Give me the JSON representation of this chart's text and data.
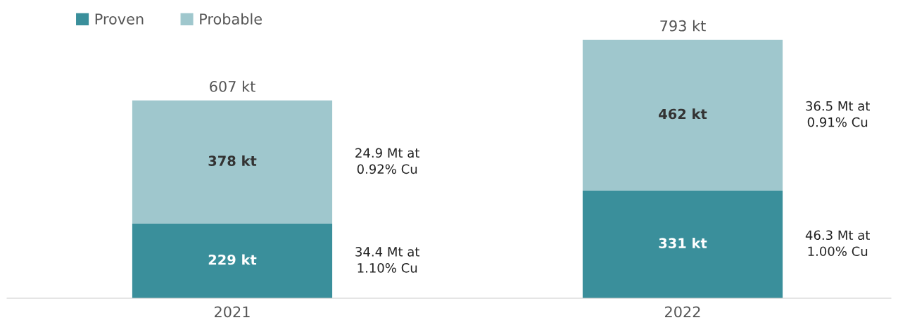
{
  "chart_data": {
    "type": "bar",
    "stacked": true,
    "categories": [
      "2021",
      "2022"
    ],
    "series": [
      {
        "name": "Proven",
        "color": "#3a8f9b",
        "values": [
          229,
          331
        ],
        "value_labels": [
          "229 kt",
          "331 kt"
        ]
      },
      {
        "name": "Probable",
        "color": "#9fc7cd",
        "values": [
          378,
          462
        ],
        "value_labels": [
          "378 kt",
          "462 kt"
        ]
      }
    ],
    "totals": [
      "607 kt",
      "793 kt"
    ],
    "annotations": [
      "34.4 Mt at\n1.10% Cu",
      "24.9 Mt at\n0.92% Cu",
      "46.3 Mt at\n1.00% Cu",
      "36.5 Mt at\n0.91% Cu"
    ],
    "legend": "top left",
    "grid": false
  }
}
